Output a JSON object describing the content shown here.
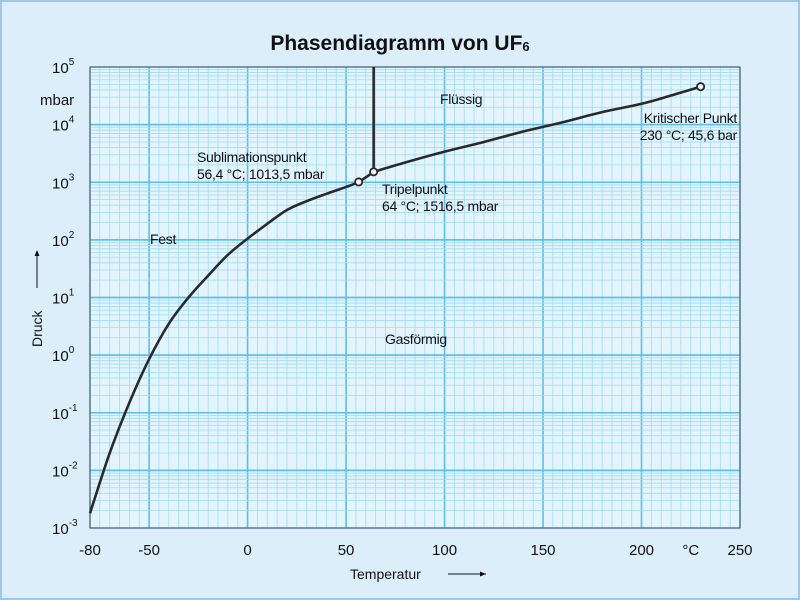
{
  "chart_data": {
    "type": "line",
    "title": "Phasendiagramm von UF",
    "title_subscript": "6",
    "xlabel": "Temperatur",
    "ylabel": "Druck",
    "y_unit": "mbar",
    "x_unit_label": "°C",
    "xlim": [
      -80,
      250
    ],
    "ylim_log10": [
      -3,
      5
    ],
    "y_scale": "log",
    "grid": true,
    "x_ticks": [
      {
        "value": -80,
        "label": "-80"
      },
      {
        "value": -50,
        "label": "-50"
      },
      {
        "value": 0,
        "label": "0"
      },
      {
        "value": 50,
        "label": "50"
      },
      {
        "value": 100,
        "label": "100"
      },
      {
        "value": 150,
        "label": "150"
      },
      {
        "value": 200,
        "label": "200"
      },
      {
        "value": 225,
        "label": "°C"
      },
      {
        "value": 250,
        "label": "250"
      }
    ],
    "y_ticks": [
      {
        "exp": -3,
        "base": "10",
        "sup": "-3"
      },
      {
        "exp": -2,
        "base": "10",
        "sup": "-2"
      },
      {
        "exp": -1,
        "base": "10",
        "sup": "-1"
      },
      {
        "exp": 0,
        "base": "10",
        "sup": "0"
      },
      {
        "exp": 1,
        "base": "10",
        "sup": "1"
      },
      {
        "exp": 2,
        "base": "10",
        "sup": "2"
      },
      {
        "exp": 3,
        "base": "10",
        "sup": "3"
      },
      {
        "exp": 4,
        "base": "10",
        "sup": "4"
      },
      {
        "exp": 5,
        "base": "10",
        "sup": "5"
      }
    ],
    "series": [
      {
        "role": "sublimation-curve",
        "points": [
          [
            -80,
            0.0018
          ],
          [
            -70,
            0.02
          ],
          [
            -60,
            0.15
          ],
          [
            -50,
            0.85
          ],
          [
            -40,
            3.5
          ],
          [
            -30,
            10
          ],
          [
            -20,
            24
          ],
          [
            -10,
            55
          ],
          [
            0,
            105
          ],
          [
            10,
            190
          ],
          [
            20,
            330
          ],
          [
            30,
            470
          ],
          [
            40,
            630
          ],
          [
            50,
            830
          ],
          [
            56.4,
            1013.5
          ],
          [
            64,
            1516.5
          ]
        ]
      },
      {
        "role": "vaporization-curve",
        "points": [
          [
            64,
            1516.5
          ],
          [
            80,
            2200
          ],
          [
            100,
            3400
          ],
          [
            120,
            5000
          ],
          [
            140,
            7600
          ],
          [
            160,
            11000
          ],
          [
            180,
            16500
          ],
          [
            200,
            23000
          ],
          [
            215,
            32000
          ],
          [
            230,
            45600
          ]
        ]
      },
      {
        "role": "melting-curve",
        "points": [
          [
            64,
            1516.5
          ],
          [
            64,
            100000
          ]
        ]
      }
    ],
    "markers": [
      {
        "x": 56.4,
        "y": 1013.5
      },
      {
        "x": 64,
        "y": 1516.5
      },
      {
        "x": 230,
        "y": 45600
      }
    ],
    "annotations": [
      {
        "key": "fluessig",
        "lines": [
          "Flüssig"
        ]
      },
      {
        "key": "fest",
        "lines": [
          "Fest"
        ]
      },
      {
        "key": "gas",
        "lines": [
          "Gasförmig"
        ]
      },
      {
        "key": "sublimation",
        "lines": [
          "Sublimationspunkt",
          "56,4 °C; 1013,5 mbar"
        ]
      },
      {
        "key": "tripel",
        "lines": [
          "Tripelpunkt",
          "64 °C; 1516,5 mbar"
        ]
      },
      {
        "key": "kritisch",
        "lines": [
          "Kritischer Punkt",
          "230 °C; 45,6 bar"
        ]
      }
    ],
    "colors": {
      "plot_background": "#e3f4fd",
      "minor_grid": "#9fdcf4",
      "major_grid": "#5bbfe8",
      "curve": "#2a2a2a"
    }
  }
}
